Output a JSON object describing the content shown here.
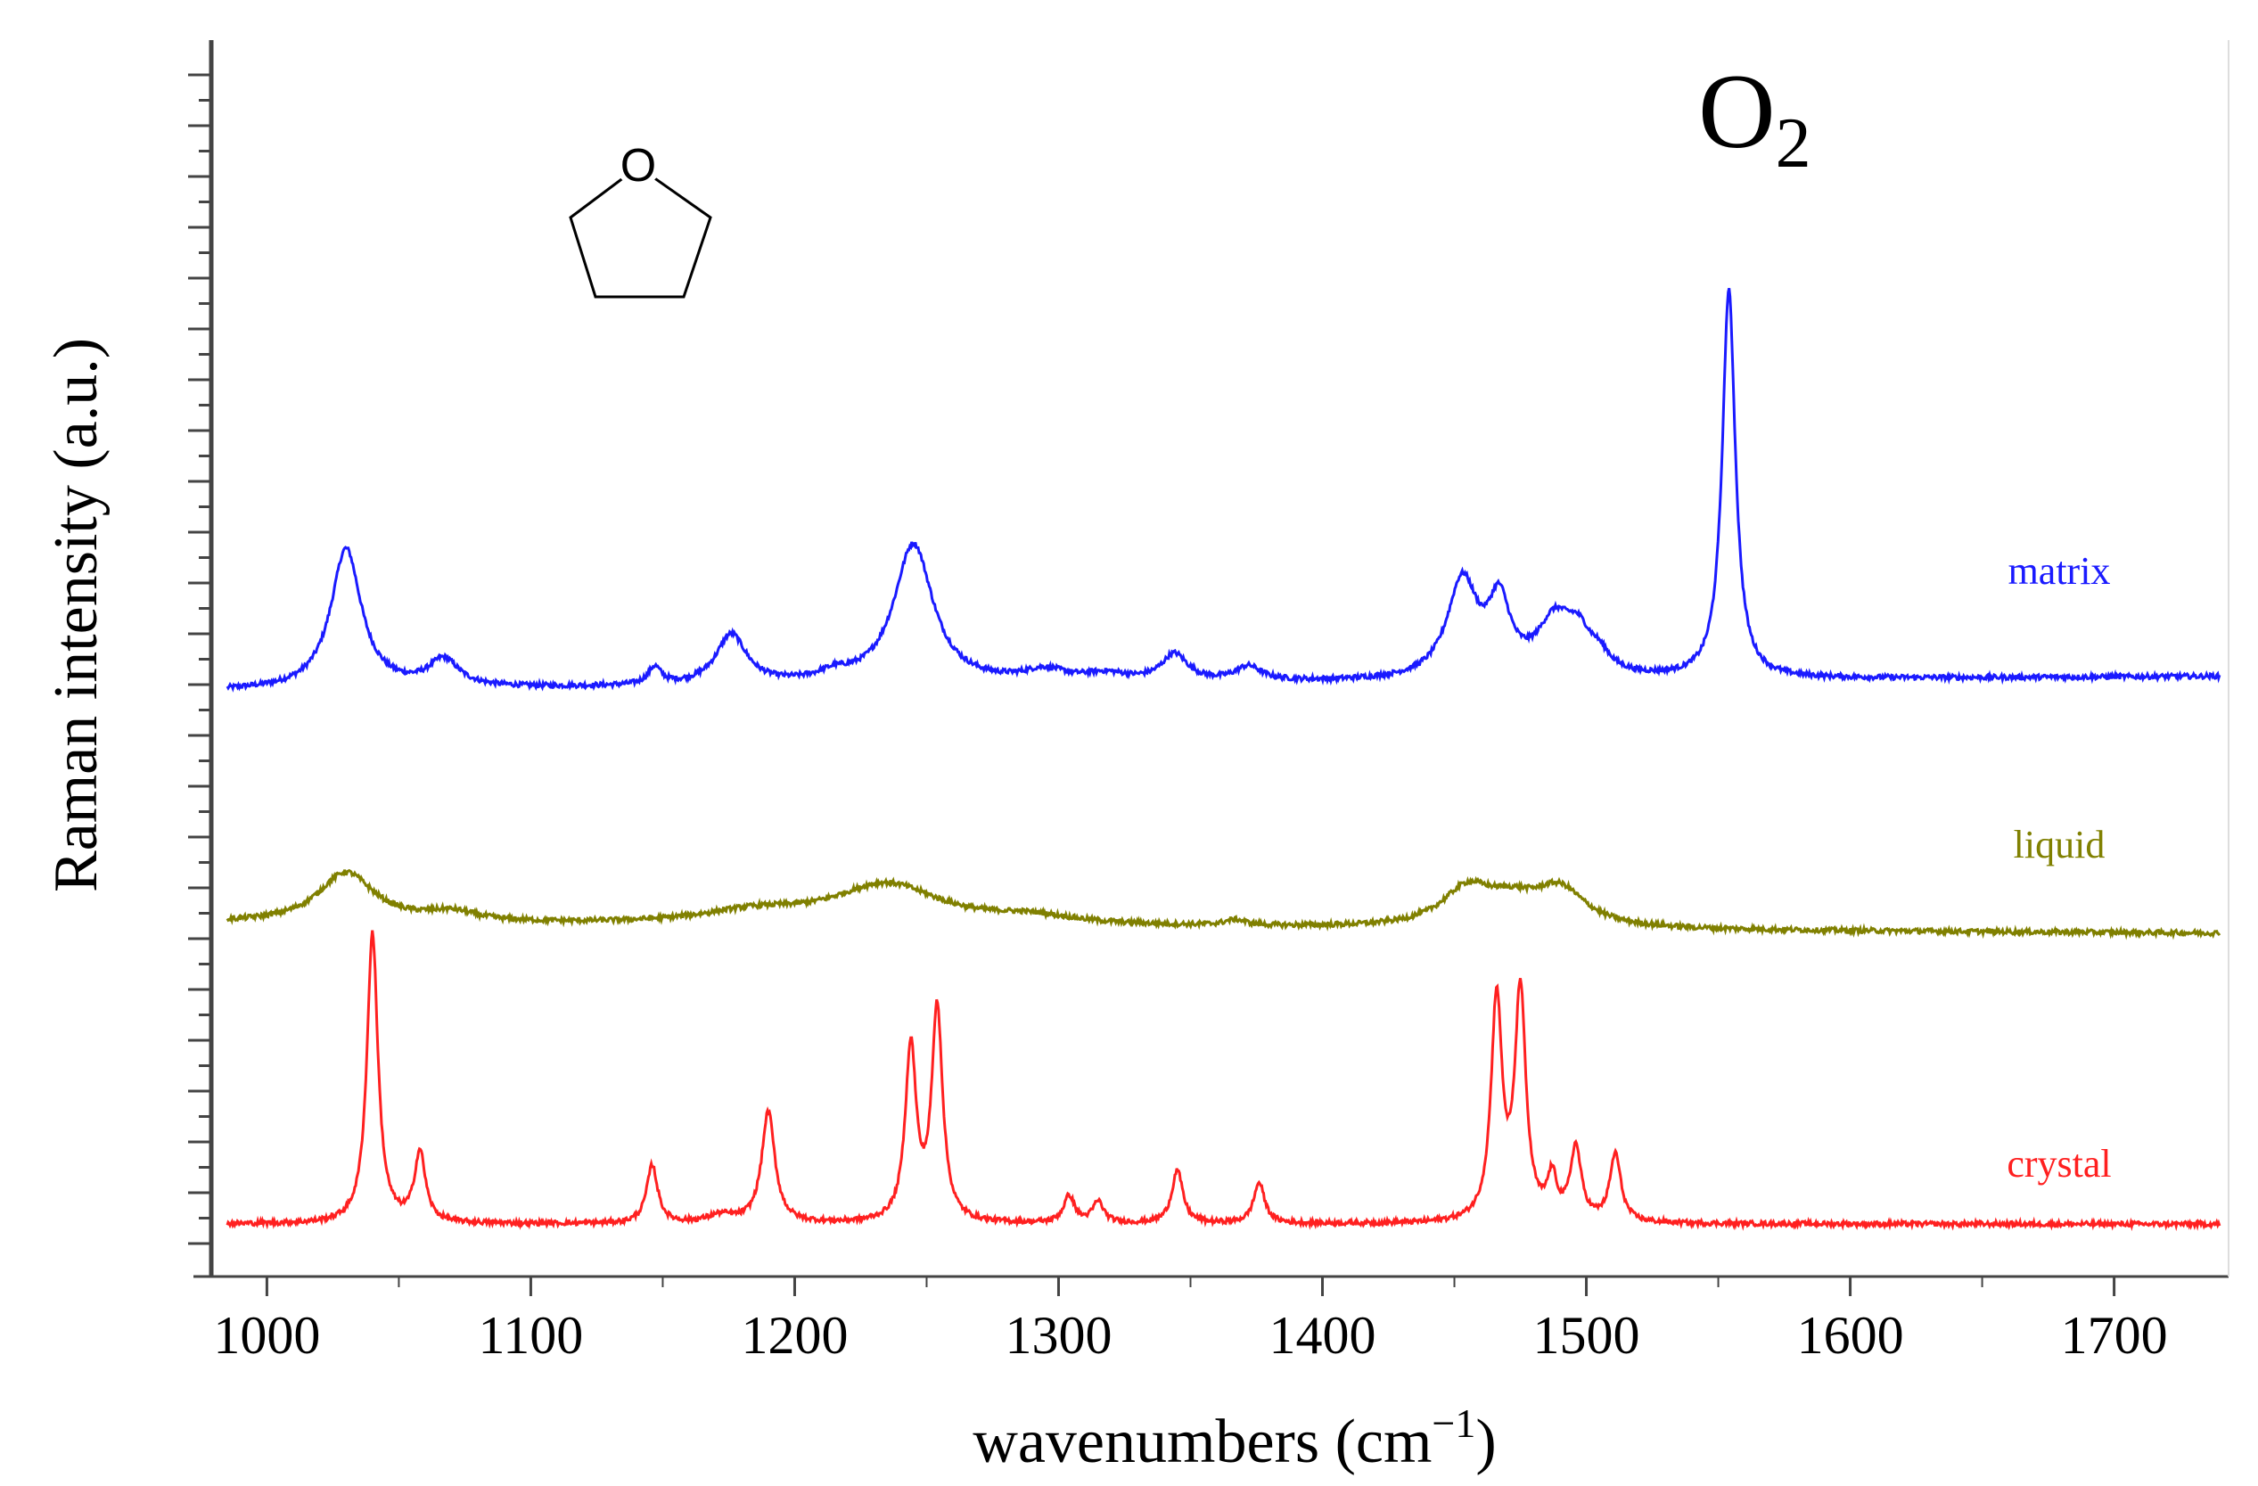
{
  "chart_data": {
    "type": "line",
    "title": "",
    "xlabel": "wavenumbers (cm",
    "xlabel_superscript": "−1",
    "xlabel_close": ")",
    "ylabel": "Raman intensity (a.u.)",
    "xlim": [
      985,
      1740
    ],
    "ylim": [
      0,
      12
    ],
    "grid": false,
    "x_ticks": [
      1000,
      1100,
      1200,
      1300,
      1400,
      1500,
      1600,
      1700
    ],
    "x_tick_labels": [
      "1000",
      "1100",
      "1200",
      "1300",
      "1400",
      "1500",
      "1600",
      "1700"
    ],
    "annotations": {
      "o2_main": "O",
      "o2_sub": "2",
      "molecule": "THF ring (five-membered ring with O)"
    },
    "series": [
      {
        "name": "matrix",
        "color": "#1a1aff",
        "baseline": 5.7,
        "end_baseline": 5.85,
        "peaks": [
          {
            "x": 1030,
            "h": 1.45,
            "w": 7
          },
          {
            "x": 1067,
            "h": 0.28,
            "w": 7
          },
          {
            "x": 1147,
            "h": 0.18,
            "w": 3
          },
          {
            "x": 1176,
            "h": 0.52,
            "w": 7
          },
          {
            "x": 1215,
            "h": 0.08,
            "w": 8
          },
          {
            "x": 1245,
            "h": 1.45,
            "w": 9
          },
          {
            "x": 1295,
            "h": 0.12,
            "w": 10
          },
          {
            "x": 1318,
            "h": 0.08,
            "w": 10
          },
          {
            "x": 1344,
            "h": 0.28,
            "w": 6
          },
          {
            "x": 1372,
            "h": 0.15,
            "w": 6
          },
          {
            "x": 1453,
            "h": 1.0,
            "w": 7
          },
          {
            "x": 1467,
            "h": 0.72,
            "w": 5
          },
          {
            "x": 1488,
            "h": 0.55,
            "w": 8
          },
          {
            "x": 1497,
            "h": 0.35,
            "w": 6
          },
          {
            "x": 1505,
            "h": 0.15,
            "w": 5
          },
          {
            "x": 1554,
            "h": 4.0,
            "w": 3
          }
        ]
      },
      {
        "name": "liquid",
        "color": "#808000",
        "baseline": 3.3,
        "end_baseline": 3.2,
        "peaks": [
          {
            "x": 1030,
            "h": 0.52,
            "w": 13
          },
          {
            "x": 1070,
            "h": 0.1,
            "w": 12
          },
          {
            "x": 1185,
            "h": 0.12,
            "w": 25
          },
          {
            "x": 1235,
            "h": 0.42,
            "w": 25
          },
          {
            "x": 1290,
            "h": 0.08,
            "w": 20
          },
          {
            "x": 1367,
            "h": 0.06,
            "w": 5
          },
          {
            "x": 1455,
            "h": 0.38,
            "w": 12
          },
          {
            "x": 1490,
            "h": 0.38,
            "w": 12
          },
          {
            "x": 1472,
            "h": 0.2,
            "w": 12
          }
        ]
      },
      {
        "name": "crystal",
        "color": "#ff2020",
        "baseline": 0.2,
        "end_baseline": 0.2,
        "peaks": [
          {
            "x": 1040,
            "h": 3.0,
            "w": 2.5
          },
          {
            "x": 1058,
            "h": 0.72,
            "w": 2.5
          },
          {
            "x": 1146,
            "h": 0.6,
            "w": 2.5
          },
          {
            "x": 1172,
            "h": 0.08,
            "w": 6
          },
          {
            "x": 1190,
            "h": 1.15,
            "w": 3
          },
          {
            "x": 1244,
            "h": 1.8,
            "w": 2.5
          },
          {
            "x": 1254,
            "h": 2.2,
            "w": 2.5
          },
          {
            "x": 1304,
            "h": 0.28,
            "w": 2.5
          },
          {
            "x": 1315,
            "h": 0.22,
            "w": 2.5
          },
          {
            "x": 1345,
            "h": 0.55,
            "w": 2.5
          },
          {
            "x": 1376,
            "h": 0.42,
            "w": 2.5
          },
          {
            "x": 1466,
            "h": 2.28,
            "w": 2.5
          },
          {
            "x": 1475,
            "h": 2.35,
            "w": 2.5
          },
          {
            "x": 1487,
            "h": 0.42,
            "w": 2.2
          },
          {
            "x": 1496,
            "h": 0.75,
            "w": 2.5
          },
          {
            "x": 1511,
            "h": 0.7,
            "w": 2.5
          }
        ]
      }
    ]
  }
}
